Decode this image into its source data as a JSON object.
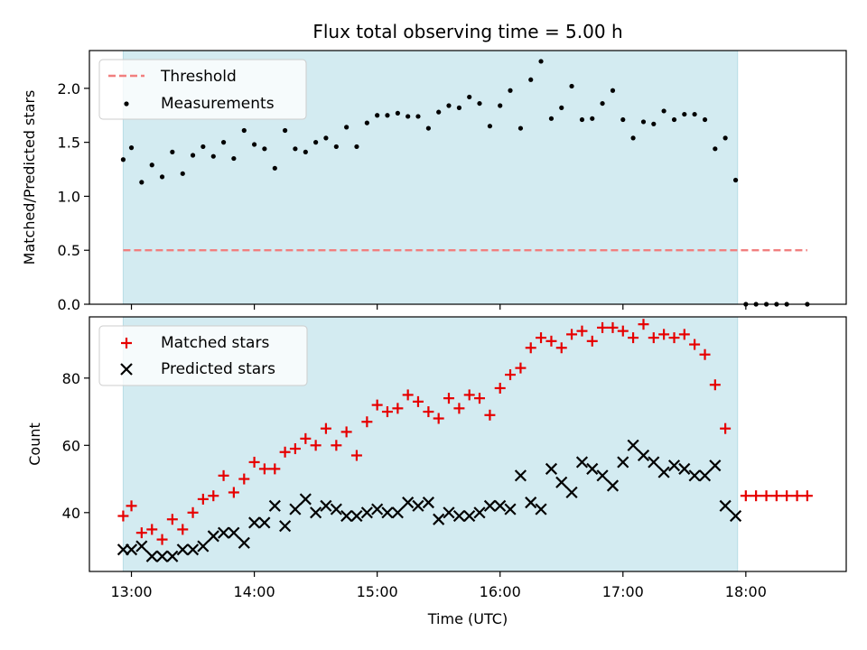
{
  "chart_data": {
    "type": "scatter",
    "title": "Flux total observing time = 5.00 h",
    "xlabel": "Time (UTC)",
    "x_ticks": [
      "13:00",
      "14:00",
      "15:00",
      "16:00",
      "17:00",
      "18:00"
    ],
    "x_tick_hours": [
      13,
      14,
      15,
      16,
      17,
      18
    ],
    "x_range_hours": [
      12.658,
      18.817
    ],
    "observing_window_hours": [
      12.933,
      17.933
    ],
    "colors": {
      "window": "#d3ebf1",
      "window_edge": "#b9dde6",
      "threshold": "#f17f7f",
      "measurements": "#000000",
      "matched": "#e60000",
      "predicted": "#000000"
    },
    "top": {
      "ylabel": "Matched/Predicted stars",
      "ylim": [
        0,
        2.35
      ],
      "y_ticks": [
        "0.0",
        "0.5",
        "1.0",
        "1.5",
        "2.0"
      ],
      "y_tick_values": [
        0,
        0.5,
        1.0,
        1.5,
        2.0
      ],
      "legend": [
        "Threshold",
        "Measurements"
      ],
      "legend_position": "top-left",
      "threshold": {
        "value": 0.5,
        "x_range_hours": [
          12.933,
          18.5
        ]
      },
      "measurements": {
        "x_hours": [
          12.933,
          13.0,
          13.083,
          13.167,
          13.25,
          13.333,
          13.417,
          13.5,
          13.583,
          13.667,
          13.75,
          13.833,
          13.917,
          14.0,
          14.083,
          14.167,
          14.25,
          14.333,
          14.417,
          14.5,
          14.583,
          14.667,
          14.75,
          14.833,
          14.917,
          15.0,
          15.083,
          15.167,
          15.25,
          15.333,
          15.417,
          15.5,
          15.583,
          15.667,
          15.75,
          15.833,
          15.917,
          16.0,
          16.083,
          16.167,
          16.25,
          16.333,
          16.417,
          16.5,
          16.583,
          16.667,
          16.75,
          16.833,
          16.917,
          17.0,
          17.083,
          17.167,
          17.25,
          17.333,
          17.417,
          17.5,
          17.583,
          17.667,
          17.75,
          17.833,
          17.917,
          18.0,
          18.083,
          18.167,
          18.25,
          18.333,
          18.5
        ],
        "values": [
          1.34,
          1.45,
          1.13,
          1.29,
          1.18,
          1.41,
          1.21,
          1.38,
          1.46,
          1.37,
          1.5,
          1.35,
          1.61,
          1.48,
          1.44,
          1.26,
          1.61,
          1.44,
          1.41,
          1.5,
          1.54,
          1.46,
          1.64,
          1.46,
          1.68,
          1.75,
          1.75,
          1.77,
          1.74,
          1.74,
          1.63,
          1.78,
          1.84,
          1.82,
          1.92,
          1.86,
          1.65,
          1.84,
          1.98,
          1.63,
          2.08,
          2.25,
          1.72,
          1.82,
          2.02,
          1.71,
          1.72,
          1.86,
          1.98,
          1.71,
          1.54,
          1.69,
          1.67,
          1.79,
          1.71,
          1.76,
          1.76,
          1.71,
          1.44,
          1.54,
          1.15,
          0,
          0,
          0,
          0,
          0,
          0
        ]
      }
    },
    "bottom": {
      "ylabel": "Count",
      "ylim": [
        22.5,
        98.2
      ],
      "y_ticks": [
        "40",
        "60",
        "80"
      ],
      "y_tick_values": [
        40,
        60,
        80
      ],
      "legend": [
        "Matched stars",
        "Predicted stars"
      ],
      "legend_position": "top-left",
      "matched": {
        "x_hours": [
          12.933,
          13.0,
          13.083,
          13.167,
          13.25,
          13.333,
          13.417,
          13.5,
          13.583,
          13.667,
          13.75,
          13.833,
          13.917,
          14.0,
          14.083,
          14.167,
          14.25,
          14.333,
          14.417,
          14.5,
          14.583,
          14.667,
          14.75,
          14.833,
          14.917,
          15.0,
          15.083,
          15.167,
          15.25,
          15.333,
          15.417,
          15.5,
          15.583,
          15.667,
          15.75,
          15.833,
          15.917,
          16.0,
          16.083,
          16.167,
          16.25,
          16.333,
          16.417,
          16.5,
          16.583,
          16.667,
          16.75,
          16.833,
          16.917,
          17.0,
          17.083,
          17.167,
          17.25,
          17.333,
          17.417,
          17.5,
          17.583,
          17.667,
          17.75,
          17.833,
          18.0,
          18.083,
          18.167,
          18.25,
          18.333,
          18.417,
          18.5
        ],
        "values": [
          39,
          42,
          34,
          35,
          32,
          38,
          35,
          40,
          44,
          45,
          51,
          46,
          50,
          55,
          53,
          53,
          58,
          59,
          62,
          60,
          65,
          60,
          64,
          57,
          67,
          72,
          70,
          71,
          75,
          73,
          70,
          68,
          74,
          71,
          75,
          74,
          69,
          77,
          81,
          83,
          89,
          92,
          91,
          89,
          93,
          94,
          91,
          95,
          95,
          94,
          92,
          96,
          92,
          93,
          92,
          93,
          90,
          87,
          78,
          65,
          45,
          45,
          45,
          45,
          45,
          45,
          45
        ]
      },
      "predicted": {
        "x_hours": [
          12.933,
          13.0,
          13.083,
          13.167,
          13.25,
          13.333,
          13.417,
          13.5,
          13.583,
          13.667,
          13.75,
          13.833,
          13.917,
          14.0,
          14.083,
          14.167,
          14.25,
          14.333,
          14.417,
          14.5,
          14.583,
          14.667,
          14.75,
          14.833,
          14.917,
          15.0,
          15.083,
          15.167,
          15.25,
          15.333,
          15.417,
          15.5,
          15.583,
          15.667,
          15.75,
          15.833,
          15.917,
          16.0,
          16.083,
          16.167,
          16.25,
          16.333,
          16.417,
          16.5,
          16.583,
          16.667,
          16.75,
          16.833,
          16.917,
          17.0,
          17.083,
          17.167,
          17.25,
          17.333,
          17.417,
          17.5,
          17.583,
          17.667,
          17.75,
          17.833,
          17.917
        ],
        "values": [
          29,
          29,
          30,
          27,
          27,
          27,
          29,
          29,
          30,
          33,
          34,
          34,
          31,
          37,
          37,
          42,
          36,
          41,
          44,
          40,
          42,
          41,
          39,
          39,
          40,
          41,
          40,
          40,
          43,
          42,
          43,
          38,
          40,
          39,
          39,
          40,
          42,
          42,
          41,
          51,
          43,
          41,
          53,
          49,
          46,
          55,
          53,
          51,
          48,
          55,
          60,
          57,
          55,
          52,
          54,
          53,
          51,
          51,
          54,
          42,
          39
        ]
      }
    }
  }
}
